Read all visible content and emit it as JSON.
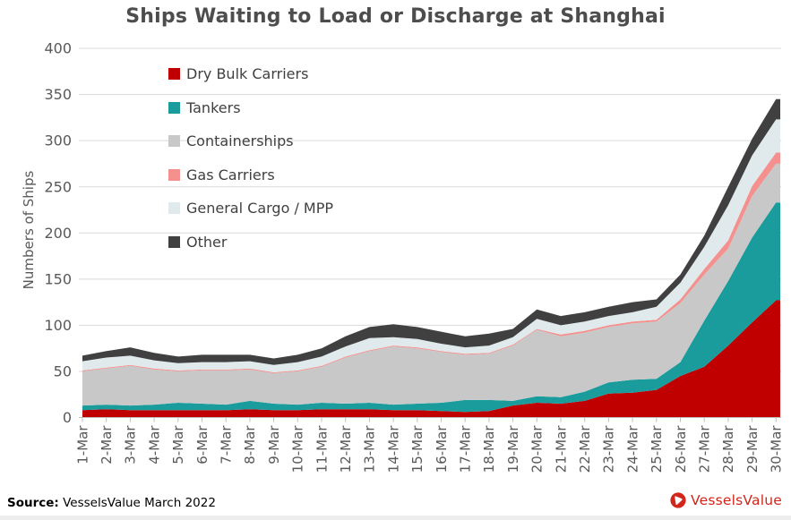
{
  "title": "Ships Waiting to Load or Discharge at Shanghai",
  "source": {
    "label": "Source:",
    "text": " VesselsValue March 2022"
  },
  "logo": {
    "text": "VesselsValue",
    "color": "#d2261a"
  },
  "chart_data": {
    "type": "area",
    "stacked": true,
    "title": "Ships Waiting to Load or Discharge at Shanghai",
    "xlabel": "",
    "ylabel": "Numbers of Ships",
    "ylim": [
      0,
      400
    ],
    "ytick_step": 50,
    "grid": "horizontal",
    "legend_position": "upper-left-inside",
    "colors": {
      "grid": "#d9d9d9",
      "axis": "#bfbfbf",
      "tick_text": "#595959"
    },
    "categories": [
      "1-Mar",
      "2-Mar",
      "3-Mar",
      "4-Mar",
      "5-Mar",
      "6-Mar",
      "7-Mar",
      "8-Mar",
      "9-Mar",
      "10-Mar",
      "11-Mar",
      "12-Mar",
      "13-Mar",
      "14-Mar",
      "15-Mar",
      "16-Mar",
      "17-Mar",
      "18-Mar",
      "19-Mar",
      "20-Mar",
      "21-Mar",
      "22-Mar",
      "23-Mar",
      "24-Mar",
      "25-Mar",
      "26-Mar",
      "27-Mar",
      "28-Mar",
      "29-Mar",
      "30-Mar"
    ],
    "series": [
      {
        "name": "Dry Bulk Carriers",
        "color": "#c00000",
        "values": [
          8,
          9,
          8,
          8,
          8,
          8,
          8,
          9,
          8,
          8,
          9,
          9,
          9,
          8,
          8,
          7,
          6,
          7,
          13,
          16,
          15,
          18,
          26,
          27,
          30,
          45,
          55,
          78,
          103,
          127
        ]
      },
      {
        "name": "Tankers",
        "color": "#1a9c9c",
        "values": [
          5,
          5,
          5,
          6,
          8,
          7,
          6,
          9,
          7,
          6,
          7,
          6,
          7,
          6,
          7,
          9,
          13,
          12,
          5,
          7,
          7,
          10,
          12,
          14,
          12,
          15,
          50,
          70,
          92,
          106
        ]
      },
      {
        "name": "Containerships",
        "color": "#c8c8c8",
        "values": [
          37,
          39,
          43,
          38,
          34,
          36,
          37,
          34,
          33,
          36,
          39,
          50,
          56,
          63,
          60,
          55,
          49,
          50,
          60,
          72,
          66,
          64,
          60,
          61,
          62,
          64,
          50,
          35,
          45,
          42
        ]
      },
      {
        "name": "Gas Carriers",
        "color": "#f4918f",
        "values": [
          1,
          1,
          1,
          1,
          1,
          1,
          1,
          1,
          1,
          1,
          1,
          1,
          1,
          1,
          1,
          1,
          1,
          1,
          1,
          1,
          2,
          2,
          2,
          2,
          2,
          4,
          6,
          9,
          11,
          12
        ]
      },
      {
        "name": "General Cargo / MPP",
        "color": "#e0eaed",
        "values": [
          10,
          11,
          10,
          9,
          8,
          8,
          8,
          8,
          8,
          9,
          10,
          11,
          13,
          9,
          9,
          8,
          7,
          8,
          8,
          11,
          10,
          10,
          10,
          10,
          14,
          18,
          24,
          38,
          33,
          36
        ]
      },
      {
        "name": "Other",
        "color": "#404040",
        "values": [
          6,
          7,
          9,
          8,
          7,
          8,
          8,
          7,
          7,
          8,
          9,
          11,
          12,
          14,
          13,
          13,
          12,
          13,
          9,
          10,
          10,
          10,
          10,
          11,
          8,
          9,
          12,
          20,
          18,
          22
        ]
      }
    ]
  }
}
